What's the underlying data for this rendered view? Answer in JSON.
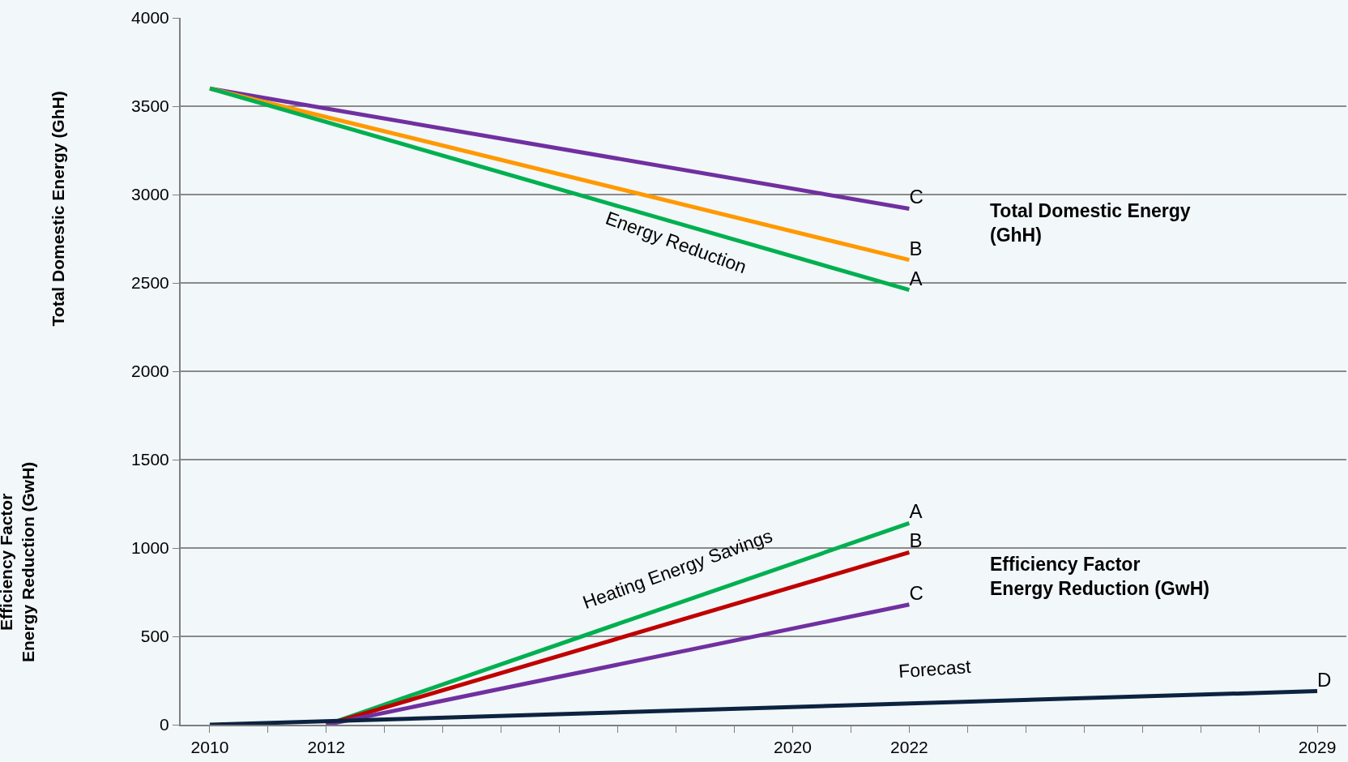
{
  "chart_data": {
    "type": "line",
    "ylabel": "Total Domestic Energy (GhH)",
    "series": [
      {
        "name": "C",
        "color": "#7030a0",
        "x": [
          2010,
          2022
        ],
        "values": [
          3600,
          2920
        ]
      },
      {
        "name": "B",
        "color": "#ff9900",
        "x": [
          2010,
          2022
        ],
        "values": [
          3600,
          2630
        ]
      },
      {
        "name": "A",
        "color": "#00b050",
        "x": [
          2010,
          2022
        ],
        "values": [
          3600,
          2460
        ]
      },
      {
        "name": "A",
        "color": "#00b050",
        "x": [
          2012,
          2022
        ],
        "values": [
          0,
          1140
        ]
      },
      {
        "name": "B",
        "color": "#c00000",
        "x": [
          2012,
          2022
        ],
        "values": [
          0,
          975
        ]
      },
      {
        "name": "C",
        "color": "#7030a0",
        "x": [
          2012,
          2022
        ],
        "values": [
          0,
          680
        ]
      },
      {
        "name": "D",
        "color": "#0c2340",
        "x": [
          2010,
          2029
        ],
        "values": [
          0,
          190
        ]
      }
    ],
    "xlim": [
      2009.5,
      2029.5
    ],
    "xticks": [
      2010,
      {
        "value": 2011,
        "label": null
      },
      2012,
      {
        "value": 2013,
        "label": null
      },
      {
        "value": 2014,
        "label": null
      },
      {
        "value": 2015,
        "label": null
      },
      {
        "value": 2016,
        "label": null
      },
      {
        "value": 2017,
        "label": null
      },
      {
        "value": 2018,
        "label": null
      },
      {
        "value": 2019,
        "label": null
      },
      2020,
      {
        "value": 2021,
        "label": null
      },
      2022,
      {
        "value": 2023,
        "label": null
      },
      {
        "value": 2024,
        "label": null
      },
      {
        "value": 2025,
        "label": null
      },
      {
        "value": 2026,
        "label": null
      },
      {
        "value": 2027,
        "label": null
      },
      {
        "value": 2028,
        "label": null
      },
      2029
    ],
    "ylim": [
      0,
      4000
    ],
    "yticks": [
      0,
      500,
      1000,
      1500,
      2000,
      2500,
      3000,
      3500,
      4000
    ],
    "grid": "y",
    "legend": false,
    "marker": "none",
    "line_style": "solid",
    "annotations": [
      "Energy Reduction",
      "Heating Energy Savings",
      "Forecast",
      "Total Domestic Energy (GhH)",
      "Efficiency Factor Energy Reduction (GwH)",
      "Efficiency Factor Energy Reduction (GwH)"
    ]
  }
}
